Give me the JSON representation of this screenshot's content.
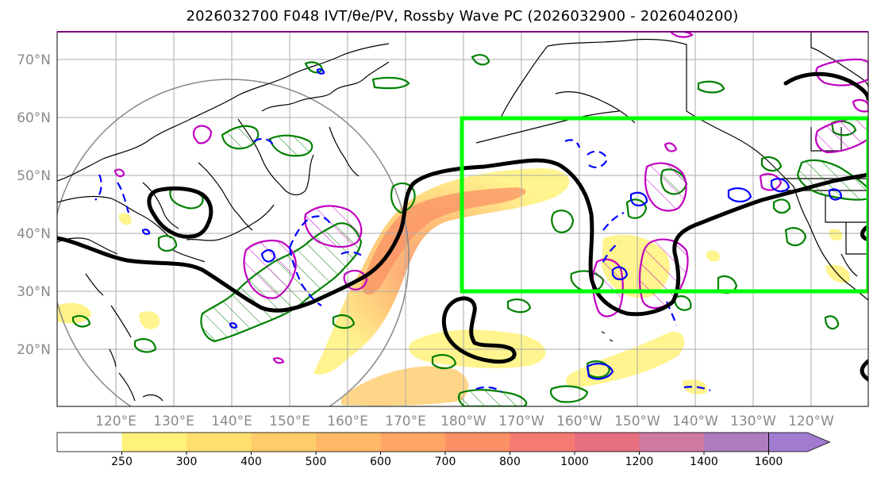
{
  "title": "2026032700 F048 IVT/θe/PV, Rossby Wave PC (2026032900 - 2026040200)",
  "latitude_labels": [
    "70°N",
    "60°N",
    "50°N",
    "40°N",
    "30°N",
    "20°N"
  ],
  "longitude_labels": [
    "120°E",
    "130°E",
    "140°E",
    "150°E",
    "160°E",
    "170°E",
    "180°W",
    "170°W",
    "160°W",
    "150°W",
    "140°W",
    "130°W",
    "120°W"
  ],
  "colorbar": {
    "tick_labels": [
      "250",
      "300",
      "400",
      "500",
      "600",
      "700",
      "800",
      "1000",
      "1200",
      "1400",
      "1600"
    ],
    "colors": [
      "#ffffff",
      "#fff27a",
      "#ffe06e",
      "#ffcc6a",
      "#ffb868",
      "#ffa566",
      "#fb9066",
      "#f57a70",
      "#e67080",
      "#cf7aa0",
      "#b07cc0",
      "#a07bd0"
    ]
  },
  "colors": {
    "highlight_box": "#00ff00",
    "green_contours": "#008000",
    "magenta_contours": "#c000c0",
    "blue_contours": "#0000ff",
    "black_contour": "#000000",
    "grid": "#aaaaaa"
  }
}
